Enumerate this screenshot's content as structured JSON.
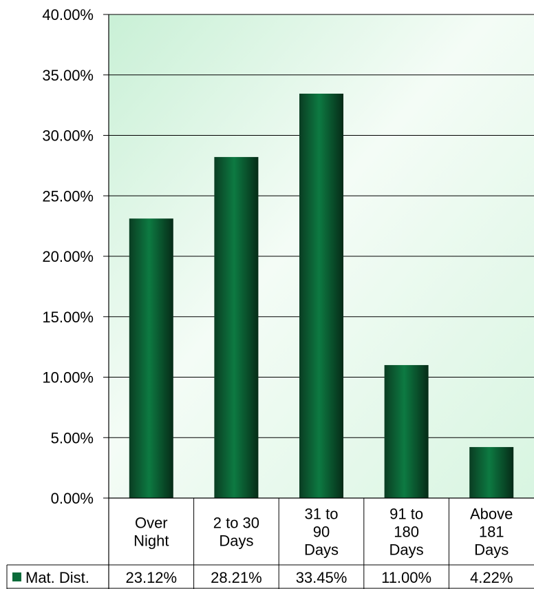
{
  "chart_data": {
    "type": "bar",
    "categories": [
      [
        "Over",
        "Night"
      ],
      [
        "2 to 30",
        "Days"
      ],
      [
        "31 to",
        "90",
        "Days"
      ],
      [
        "91 to",
        "180",
        "Days"
      ],
      [
        "Above",
        "181",
        "Days"
      ]
    ],
    "series": [
      {
        "name": "Mat. Dist.",
        "values": [
          23.12,
          28.21,
          33.45,
          11.0,
          4.22
        ],
        "value_labels": [
          "23.12%",
          "28.21%",
          "33.45%",
          "11.00%",
          "4.22%"
        ],
        "color": "#0b6b3a"
      }
    ],
    "ylim": [
      0,
      40
    ],
    "yticks": [
      "0.00%",
      "5.00%",
      "10.00%",
      "15.00%",
      "20.00%",
      "25.00%",
      "30.00%",
      "35.00%",
      "40.00%"
    ],
    "ytick_values": [
      0,
      5,
      10,
      15,
      20,
      25,
      30,
      35,
      40
    ],
    "grid": true,
    "legend": "data-table",
    "plot_background": "#e8f8ec"
  }
}
